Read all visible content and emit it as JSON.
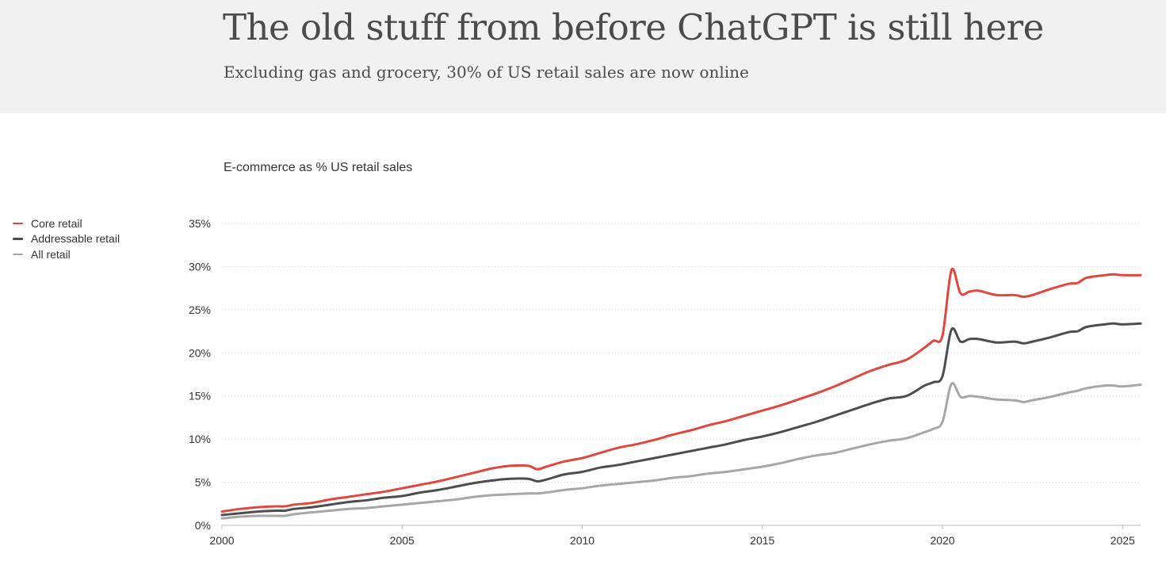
{
  "header": {
    "title": "The old stuff from before ChatGPT is still here",
    "subtitle": "Excluding gas and grocery, 30% of US retail sales are now online"
  },
  "chart_data": {
    "type": "line",
    "title": "E-commerce as % US retail sales",
    "xlabel": "",
    "ylabel": "",
    "xlim": [
      2000,
      2025.5
    ],
    "ylim": [
      0,
      35
    ],
    "x_ticks": [
      2000,
      2005,
      2010,
      2015,
      2020,
      2025
    ],
    "x_tick_labels": [
      "2000",
      "2005",
      "2010",
      "2015",
      "2020",
      "2025"
    ],
    "y_ticks": [
      0,
      5,
      10,
      15,
      20,
      25,
      30,
      35
    ],
    "y_tick_labels": [
      "0%",
      "5%",
      "10%",
      "15%",
      "20%",
      "25%",
      "30%",
      "35%"
    ],
    "grid": "horizontal dotted",
    "legend_position": "left",
    "series": [
      {
        "name": "Core retail",
        "color": "#e2463f",
        "points": [
          [
            2000.0,
            1.6
          ],
          [
            2000.5,
            1.9
          ],
          [
            2001.0,
            2.1
          ],
          [
            2001.5,
            2.2
          ],
          [
            2001.75,
            2.2
          ],
          [
            2002.0,
            2.4
          ],
          [
            2002.5,
            2.6
          ],
          [
            2003.0,
            3.0
          ],
          [
            2003.5,
            3.3
          ],
          [
            2004.0,
            3.6
          ],
          [
            2004.5,
            3.9
          ],
          [
            2005.0,
            4.3
          ],
          [
            2005.5,
            4.7
          ],
          [
            2006.0,
            5.1
          ],
          [
            2006.5,
            5.6
          ],
          [
            2007.0,
            6.1
          ],
          [
            2007.5,
            6.6
          ],
          [
            2008.0,
            6.9
          ],
          [
            2008.5,
            6.9
          ],
          [
            2008.75,
            6.5
          ],
          [
            2009.0,
            6.8
          ],
          [
            2009.5,
            7.4
          ],
          [
            2010.0,
            7.8
          ],
          [
            2010.5,
            8.4
          ],
          [
            2011.0,
            9.0
          ],
          [
            2011.5,
            9.4
          ],
          [
            2012.0,
            9.9
          ],
          [
            2012.5,
            10.5
          ],
          [
            2013.0,
            11.0
          ],
          [
            2013.5,
            11.6
          ],
          [
            2014.0,
            12.1
          ],
          [
            2014.5,
            12.7
          ],
          [
            2015.0,
            13.3
          ],
          [
            2015.5,
            13.9
          ],
          [
            2016.0,
            14.6
          ],
          [
            2016.5,
            15.3
          ],
          [
            2017.0,
            16.1
          ],
          [
            2017.5,
            17.0
          ],
          [
            2018.0,
            17.9
          ],
          [
            2018.5,
            18.6
          ],
          [
            2019.0,
            19.2
          ],
          [
            2019.5,
            20.6
          ],
          [
            2019.75,
            21.4
          ],
          [
            2020.0,
            22.0
          ],
          [
            2020.25,
            29.6
          ],
          [
            2020.5,
            26.9
          ],
          [
            2020.75,
            27.1
          ],
          [
            2021.0,
            27.2
          ],
          [
            2021.5,
            26.7
          ],
          [
            2022.0,
            26.7
          ],
          [
            2022.25,
            26.5
          ],
          [
            2022.5,
            26.7
          ],
          [
            2023.0,
            27.4
          ],
          [
            2023.5,
            28.0
          ],
          [
            2023.75,
            28.1
          ],
          [
            2024.0,
            28.7
          ],
          [
            2024.5,
            29.0
          ],
          [
            2024.75,
            29.1
          ],
          [
            2025.0,
            29.0
          ],
          [
            2025.5,
            29.0
          ]
        ]
      },
      {
        "name": "Addressable retail",
        "color": "#4d4d4f",
        "points": [
          [
            2000.0,
            1.2
          ],
          [
            2000.5,
            1.4
          ],
          [
            2001.0,
            1.6
          ],
          [
            2001.5,
            1.7
          ],
          [
            2001.75,
            1.7
          ],
          [
            2002.0,
            1.9
          ],
          [
            2002.5,
            2.1
          ],
          [
            2003.0,
            2.4
          ],
          [
            2003.5,
            2.7
          ],
          [
            2004.0,
            2.9
          ],
          [
            2004.5,
            3.2
          ],
          [
            2005.0,
            3.4
          ],
          [
            2005.5,
            3.8
          ],
          [
            2006.0,
            4.1
          ],
          [
            2006.5,
            4.5
          ],
          [
            2007.0,
            4.9
          ],
          [
            2007.5,
            5.2
          ],
          [
            2008.0,
            5.4
          ],
          [
            2008.5,
            5.4
          ],
          [
            2008.75,
            5.1
          ],
          [
            2009.0,
            5.3
          ],
          [
            2009.5,
            5.9
          ],
          [
            2010.0,
            6.2
          ],
          [
            2010.5,
            6.7
          ],
          [
            2011.0,
            7.0
          ],
          [
            2011.5,
            7.4
          ],
          [
            2012.0,
            7.8
          ],
          [
            2012.5,
            8.2
          ],
          [
            2013.0,
            8.6
          ],
          [
            2013.5,
            9.0
          ],
          [
            2014.0,
            9.4
          ],
          [
            2014.5,
            9.9
          ],
          [
            2015.0,
            10.3
          ],
          [
            2015.5,
            10.8
          ],
          [
            2016.0,
            11.4
          ],
          [
            2016.5,
            12.0
          ],
          [
            2017.0,
            12.7
          ],
          [
            2017.5,
            13.4
          ],
          [
            2018.0,
            14.1
          ],
          [
            2018.5,
            14.7
          ],
          [
            2019.0,
            15.0
          ],
          [
            2019.5,
            16.2
          ],
          [
            2019.75,
            16.6
          ],
          [
            2020.0,
            17.3
          ],
          [
            2020.25,
            22.7
          ],
          [
            2020.5,
            21.3
          ],
          [
            2020.75,
            21.6
          ],
          [
            2021.0,
            21.6
          ],
          [
            2021.5,
            21.2
          ],
          [
            2022.0,
            21.3
          ],
          [
            2022.25,
            21.1
          ],
          [
            2022.5,
            21.3
          ],
          [
            2023.0,
            21.8
          ],
          [
            2023.5,
            22.4
          ],
          [
            2023.75,
            22.5
          ],
          [
            2024.0,
            23.0
          ],
          [
            2024.5,
            23.3
          ],
          [
            2024.75,
            23.4
          ],
          [
            2025.0,
            23.3
          ],
          [
            2025.5,
            23.4
          ]
        ]
      },
      {
        "name": "All retail",
        "color": "#a7a7a7",
        "points": [
          [
            2000.0,
            0.8
          ],
          [
            2000.5,
            1.0
          ],
          [
            2001.0,
            1.1
          ],
          [
            2001.5,
            1.1
          ],
          [
            2001.75,
            1.1
          ],
          [
            2002.0,
            1.3
          ],
          [
            2002.5,
            1.5
          ],
          [
            2003.0,
            1.7
          ],
          [
            2003.5,
            1.9
          ],
          [
            2004.0,
            2.0
          ],
          [
            2004.5,
            2.2
          ],
          [
            2005.0,
            2.4
          ],
          [
            2005.5,
            2.6
          ],
          [
            2006.0,
            2.8
          ],
          [
            2006.5,
            3.0
          ],
          [
            2007.0,
            3.3
          ],
          [
            2007.5,
            3.5
          ],
          [
            2008.0,
            3.6
          ],
          [
            2008.5,
            3.7
          ],
          [
            2008.75,
            3.7
          ],
          [
            2009.0,
            3.8
          ],
          [
            2009.5,
            4.1
          ],
          [
            2010.0,
            4.3
          ],
          [
            2010.5,
            4.6
          ],
          [
            2011.0,
            4.8
          ],
          [
            2011.5,
            5.0
          ],
          [
            2012.0,
            5.2
          ],
          [
            2012.5,
            5.5
          ],
          [
            2013.0,
            5.7
          ],
          [
            2013.5,
            6.0
          ],
          [
            2014.0,
            6.2
          ],
          [
            2014.5,
            6.5
          ],
          [
            2015.0,
            6.8
          ],
          [
            2015.5,
            7.2
          ],
          [
            2016.0,
            7.7
          ],
          [
            2016.5,
            8.1
          ],
          [
            2017.0,
            8.4
          ],
          [
            2017.5,
            8.9
          ],
          [
            2018.0,
            9.4
          ],
          [
            2018.5,
            9.8
          ],
          [
            2019.0,
            10.1
          ],
          [
            2019.5,
            10.8
          ],
          [
            2019.75,
            11.2
          ],
          [
            2020.0,
            12.0
          ],
          [
            2020.25,
            16.4
          ],
          [
            2020.5,
            14.9
          ],
          [
            2020.75,
            15.0
          ],
          [
            2021.0,
            14.9
          ],
          [
            2021.5,
            14.6
          ],
          [
            2022.0,
            14.5
          ],
          [
            2022.25,
            14.3
          ],
          [
            2022.5,
            14.5
          ],
          [
            2023.0,
            14.9
          ],
          [
            2023.5,
            15.4
          ],
          [
            2023.75,
            15.6
          ],
          [
            2024.0,
            15.9
          ],
          [
            2024.5,
            16.2
          ],
          [
            2024.75,
            16.2
          ],
          [
            2025.0,
            16.1
          ],
          [
            2025.5,
            16.3
          ]
        ]
      }
    ]
  }
}
